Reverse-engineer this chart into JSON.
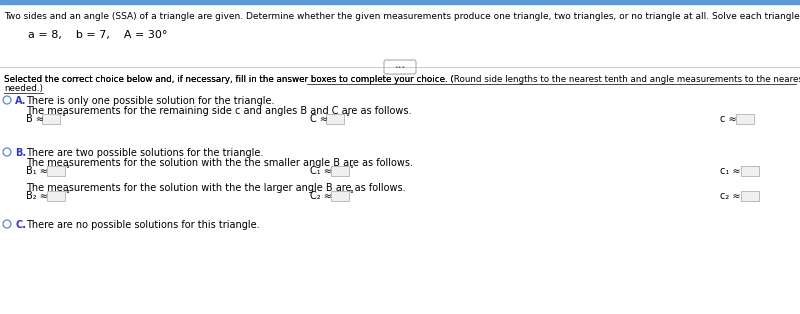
{
  "title_line": "Two sides and an angle (SSA) of a triangle are given. Determine whether the given measurements produce one triangle, two triangles, or no triangle at all. Solve each triangle that results.",
  "given_line": "a = 8,    b = 7,    A = 30°",
  "instr_prefix": "Selected the correct choice below and, if necessary, fill in the answer boxes to complete your choice. (",
  "instr_underlined1": "Round side lengths to the nearest tenth and angle measurements to the nearest degree as",
  "instr_line2": "needed.)",
  "option_A_label": "A.",
  "option_A_text1": "There is only one possible solution for the triangle.",
  "option_A_text2": "The measurements for the remaining side c and angles B and C are as follows.",
  "option_B_label": "B.",
  "option_B_text1": "There are two possible solutions for the triangle.",
  "option_B_text2": "The measurements for the solution with the the smaller angle B are as follows.",
  "option_B_text3": "The measurements for the solution with the the larger angle B are as follows.",
  "option_C_label": "C.",
  "option_C_text": "There are no possible solutions for this triangle.",
  "bg_color": "#ffffff",
  "text_color": "#000000",
  "blue_color": "#3333cc",
  "box_edge_color": "#bbbbbb",
  "box_face_color": "#f0f0f0",
  "sep_color": "#cccccc",
  "ellipsis_edge": "#aaaaaa",
  "top_bar_color": "#5b9bd5",
  "radio_color": "#6688cc"
}
